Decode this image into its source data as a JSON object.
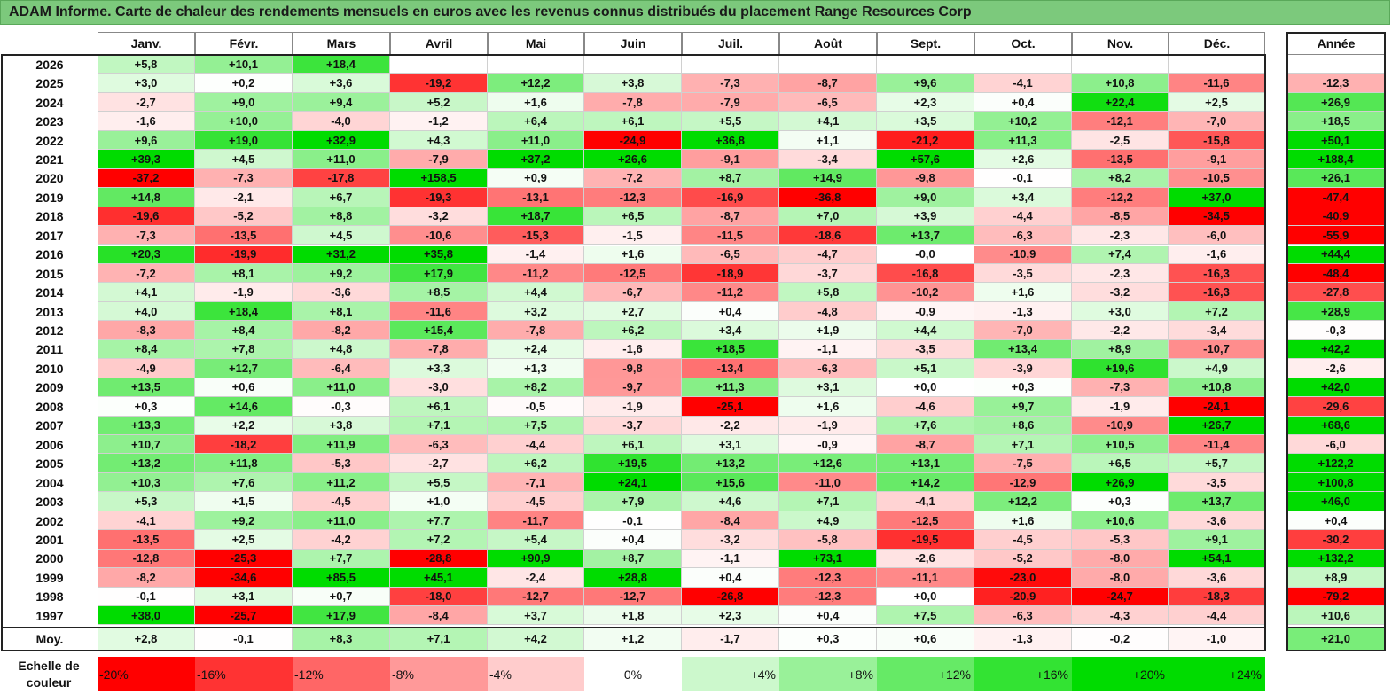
{
  "title": "ADAM Informe. Carte de chaleur des rendements mensuels en euros avec les revenus connus distribués du placement Range Resources Corp",
  "chart_data": {
    "type": "heatmap",
    "title": "ADAM Informe. Carte de chaleur des rendements mensuels en euros avec les revenus connus distribués du placement Range Resources Corp",
    "months": [
      "Janv.",
      "Févr.",
      "Mars",
      "Avril",
      "Mai",
      "Juin",
      "Juil.",
      "Août",
      "Sept.",
      "Oct.",
      "Nov.",
      "Déc."
    ],
    "year_header": "Année",
    "rows": [
      {
        "label": "2026",
        "values": [
          "+5,8",
          "+10,1",
          "+18,4",
          "",
          "",
          "",
          "",
          "",
          "",
          "",
          "",
          ""
        ],
        "year": ""
      },
      {
        "label": "2025",
        "values": [
          "+3,0",
          "+0,2",
          "+3,6",
          "-19,2",
          "+12,2",
          "+3,8",
          "-7,3",
          "-8,7",
          "+9,6",
          "-4,1",
          "+10,8",
          "-11,6"
        ],
        "year": "-12,3"
      },
      {
        "label": "2024",
        "values": [
          "-2,7",
          "+9,0",
          "+9,4",
          "+5,2",
          "+1,6",
          "-7,8",
          "-7,9",
          "-6,5",
          "+2,3",
          "+0,4",
          "+22,4",
          "+2,5"
        ],
        "year": "+26,9"
      },
      {
        "label": "2023",
        "values": [
          "-1,6",
          "+10,0",
          "-4,0",
          "-1,2",
          "+6,4",
          "+6,1",
          "+5,5",
          "+4,1",
          "+3,5",
          "+10,2",
          "-12,1",
          "-7,0"
        ],
        "year": "+18,5"
      },
      {
        "label": "2022",
        "values": [
          "+9,6",
          "+19,0",
          "+32,9",
          "+4,3",
          "+11,0",
          "-24,9",
          "+36,8",
          "+1,1",
          "-21,2",
          "+11,3",
          "-2,5",
          "-15,8"
        ],
        "year": "+50,1"
      },
      {
        "label": "2021",
        "values": [
          "+39,3",
          "+4,5",
          "+11,0",
          "-7,9",
          "+37,2",
          "+26,6",
          "-9,1",
          "-3,4",
          "+57,6",
          "+2,6",
          "-13,5",
          "-9,1"
        ],
        "year": "+188,4"
      },
      {
        "label": "2020",
        "values": [
          "-37,2",
          "-7,3",
          "-17,8",
          "+158,5",
          "+0,9",
          "-7,2",
          "+8,7",
          "+14,9",
          "-9,8",
          "-0,1",
          "+8,2",
          "-10,5"
        ],
        "year": "+26,1"
      },
      {
        "label": "2019",
        "values": [
          "+14,8",
          "-2,1",
          "+6,7",
          "-19,3",
          "-13,1",
          "-12,3",
          "-16,9",
          "-36,8",
          "+9,0",
          "+3,4",
          "-12,2",
          "+37,0"
        ],
        "year": "-47,4"
      },
      {
        "label": "2018",
        "values": [
          "-19,6",
          "-5,2",
          "+8,8",
          "-3,2",
          "+18,7",
          "+6,5",
          "-8,7",
          "+7,0",
          "+3,9",
          "-4,4",
          "-8,5",
          "-34,5"
        ],
        "year": "-40,9"
      },
      {
        "label": "2017",
        "values": [
          "-7,3",
          "-13,5",
          "+4,5",
          "-10,6",
          "-15,3",
          "-1,5",
          "-11,5",
          "-18,6",
          "+13,7",
          "-6,3",
          "-2,3",
          "-6,0"
        ],
        "year": "-55,9"
      },
      {
        "label": "2016",
        "values": [
          "+20,3",
          "-19,9",
          "+31,2",
          "+35,8",
          "-1,4",
          "+1,6",
          "-6,5",
          "-4,7",
          "-0,0",
          "-10,9",
          "+7,4",
          "-1,6"
        ],
        "year": "+44,4"
      },
      {
        "label": "2015",
        "values": [
          "-7,2",
          "+8,1",
          "+9,2",
          "+17,9",
          "-11,2",
          "-12,5",
          "-18,9",
          "-3,7",
          "-16,8",
          "-3,5",
          "-2,3",
          "-16,3"
        ],
        "year": "-48,4"
      },
      {
        "label": "2014",
        "values": [
          "+4,1",
          "-1,9",
          "-3,6",
          "+8,5",
          "+4,4",
          "-6,7",
          "-11,2",
          "+5,8",
          "-10,2",
          "+1,6",
          "-3,2",
          "-16,3"
        ],
        "year": "-27,8"
      },
      {
        "label": "2013",
        "values": [
          "+4,0",
          "+18,4",
          "+8,1",
          "-11,6",
          "+3,2",
          "+2,7",
          "+0,4",
          "-4,8",
          "-0,9",
          "-1,3",
          "+3,0",
          "+7,2"
        ],
        "year": "+28,9"
      },
      {
        "label": "2012",
        "values": [
          "-8,3",
          "+8,4",
          "-8,2",
          "+15,4",
          "-7,8",
          "+6,2",
          "+3,4",
          "+1,9",
          "+4,4",
          "-7,0",
          "-2,2",
          "-3,4"
        ],
        "year": "-0,3"
      },
      {
        "label": "2011",
        "values": [
          "+8,4",
          "+7,8",
          "+4,8",
          "-7,8",
          "+2,4",
          "-1,6",
          "+18,5",
          "-1,1",
          "-3,5",
          "+13,4",
          "+8,9",
          "-10,7"
        ],
        "year": "+42,2"
      },
      {
        "label": "2010",
        "values": [
          "-4,9",
          "+12,7",
          "-6,4",
          "+3,3",
          "+1,3",
          "-9,8",
          "-13,4",
          "-6,3",
          "+5,1",
          "-3,9",
          "+19,6",
          "+4,9"
        ],
        "year": "-2,6"
      },
      {
        "label": "2009",
        "values": [
          "+13,5",
          "+0,6",
          "+11,0",
          "-3,0",
          "+8,2",
          "-9,7",
          "+11,3",
          "+3,1",
          "+0,0",
          "+0,3",
          "-7,3",
          "+10,8"
        ],
        "year": "+42,0"
      },
      {
        "label": "2008",
        "values": [
          "+0,3",
          "+14,6",
          "-0,3",
          "+6,1",
          "-0,5",
          "-1,9",
          "-25,1",
          "+1,6",
          "-4,6",
          "+9,7",
          "-1,9",
          "-24,1"
        ],
        "year": "-29,6"
      },
      {
        "label": "2007",
        "values": [
          "+13,3",
          "+2,2",
          "+3,8",
          "+7,1",
          "+7,5",
          "-3,7",
          "-2,2",
          "-1,9",
          "+7,6",
          "+8,6",
          "-10,9",
          "+26,7"
        ],
        "year": "+68,6"
      },
      {
        "label": "2006",
        "values": [
          "+10,7",
          "-18,2",
          "+11,9",
          "-6,3",
          "-4,4",
          "+6,1",
          "+3,1",
          "-0,9",
          "-8,7",
          "+7,1",
          "+10,5",
          "-11,4"
        ],
        "year": "-6,0"
      },
      {
        "label": "2005",
        "values": [
          "+13,2",
          "+11,8",
          "-5,3",
          "-2,7",
          "+6,2",
          "+19,5",
          "+13,2",
          "+12,6",
          "+13,1",
          "-7,5",
          "+6,5",
          "+5,7"
        ],
        "year": "+122,2"
      },
      {
        "label": "2004",
        "values": [
          "+10,3",
          "+7,6",
          "+11,2",
          "+5,5",
          "-7,1",
          "+24,1",
          "+15,6",
          "-11,0",
          "+14,2",
          "-12,9",
          "+26,9",
          "-3,5"
        ],
        "year": "+100,8"
      },
      {
        "label": "2003",
        "values": [
          "+5,3",
          "+1,5",
          "-4,5",
          "+1,0",
          "-4,5",
          "+7,9",
          "+4,6",
          "+7,1",
          "-4,1",
          "+12,2",
          "+0,3",
          "+13,7"
        ],
        "year": "+46,0"
      },
      {
        "label": "2002",
        "values": [
          "-4,1",
          "+9,2",
          "+11,0",
          "+7,7",
          "-11,7",
          "-0,1",
          "-8,4",
          "+4,9",
          "-12,5",
          "+1,6",
          "+10,6",
          "-3,6"
        ],
        "year": "+0,4"
      },
      {
        "label": "2001",
        "values": [
          "-13,5",
          "+2,5",
          "-4,2",
          "+7,2",
          "+5,4",
          "+0,4",
          "-3,2",
          "-5,8",
          "-19,5",
          "-4,5",
          "-5,3",
          "+9,1"
        ],
        "year": "-30,2"
      },
      {
        "label": "2000",
        "values": [
          "-12,8",
          "-25,3",
          "+7,7",
          "-28,8",
          "+90,9",
          "+8,7",
          "-1,1",
          "+73,1",
          "-2,6",
          "-5,2",
          "-8,0",
          "+54,1"
        ],
        "year": "+132,2"
      },
      {
        "label": "1999",
        "values": [
          "-8,2",
          "-34,6",
          "+85,5",
          "+45,1",
          "-2,4",
          "+28,8",
          "+0,4",
          "-12,3",
          "-11,1",
          "-23,0",
          "-8,0",
          "-3,6"
        ],
        "year": "+8,9"
      },
      {
        "label": "1998",
        "values": [
          "-0,1",
          "+3,1",
          "+0,7",
          "-18,0",
          "-12,7",
          "-12,7",
          "-26,8",
          "-12,3",
          "+0,0",
          "-20,9",
          "-24,7",
          "-18,3"
        ],
        "year": "-79,2"
      },
      {
        "label": "1997",
        "values": [
          "+38,0",
          "-25,7",
          "+17,9",
          "-8,4",
          "+3,7",
          "+1,8",
          "+2,3",
          "+0,4",
          "+7,5",
          "-6,3",
          "-4,3",
          "-4,4"
        ],
        "year": "+10,6"
      }
    ],
    "average": {
      "label": "Moy.",
      "values": [
        "+2,8",
        "-0,1",
        "+8,3",
        "+7,1",
        "+4,2",
        "+1,2",
        "-1,7",
        "+0,3",
        "+0,6",
        "-1,3",
        "-0,2",
        "-1,0"
      ],
      "year": "+21,0"
    },
    "scale": {
      "label": "Echelle de couleur",
      "steps": [
        "-20%",
        "-16%",
        "-12%",
        "-8%",
        "-4%",
        "0%",
        "+4%",
        "+8%",
        "+12%",
        "+16%",
        "+20%",
        "+24%"
      ]
    }
  }
}
